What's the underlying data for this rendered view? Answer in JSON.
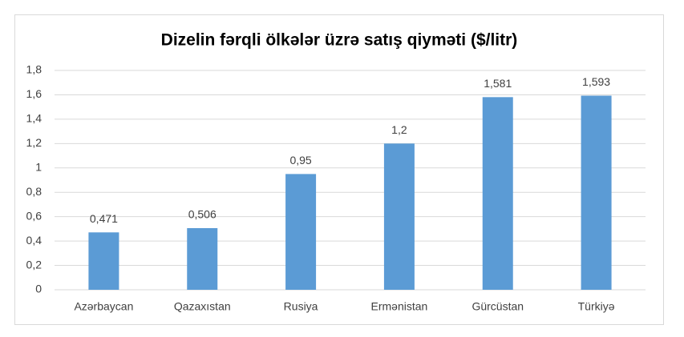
{
  "chart_data": {
    "type": "bar",
    "title": "Dizelin fərqli ölkələr üzrə satış qiyməti ($/litr)",
    "categories": [
      "Azərbaycan",
      "Qazaxıstan",
      "Rusiya",
      "Ermənistan",
      "Gürcüstan",
      "Türkiyə"
    ],
    "values": [
      0.471,
      0.506,
      0.95,
      1.2,
      1.581,
      1.593
    ],
    "value_labels": [
      "0,471",
      "0,506",
      "0,95",
      "1,2",
      "1,581",
      "1,593"
    ],
    "color": "#5b9bd5",
    "ylim": [
      0,
      1.8
    ],
    "yticks": [
      0,
      {
        "value": 0.2,
        "label": "0,2"
      },
      {
        "value": 0.4,
        "label": "0,4"
      },
      {
        "value": 0.6,
        "label": "0,6"
      },
      {
        "value": 0.8,
        "label": "0,8"
      },
      1,
      {
        "value": 1.2,
        "label": "1,2"
      },
      {
        "value": 1.4,
        "label": "1,4"
      },
      {
        "value": 1.6,
        "label": "1,6"
      },
      {
        "value": 1.8,
        "label": "1,8"
      }
    ],
    "grid": true
  }
}
